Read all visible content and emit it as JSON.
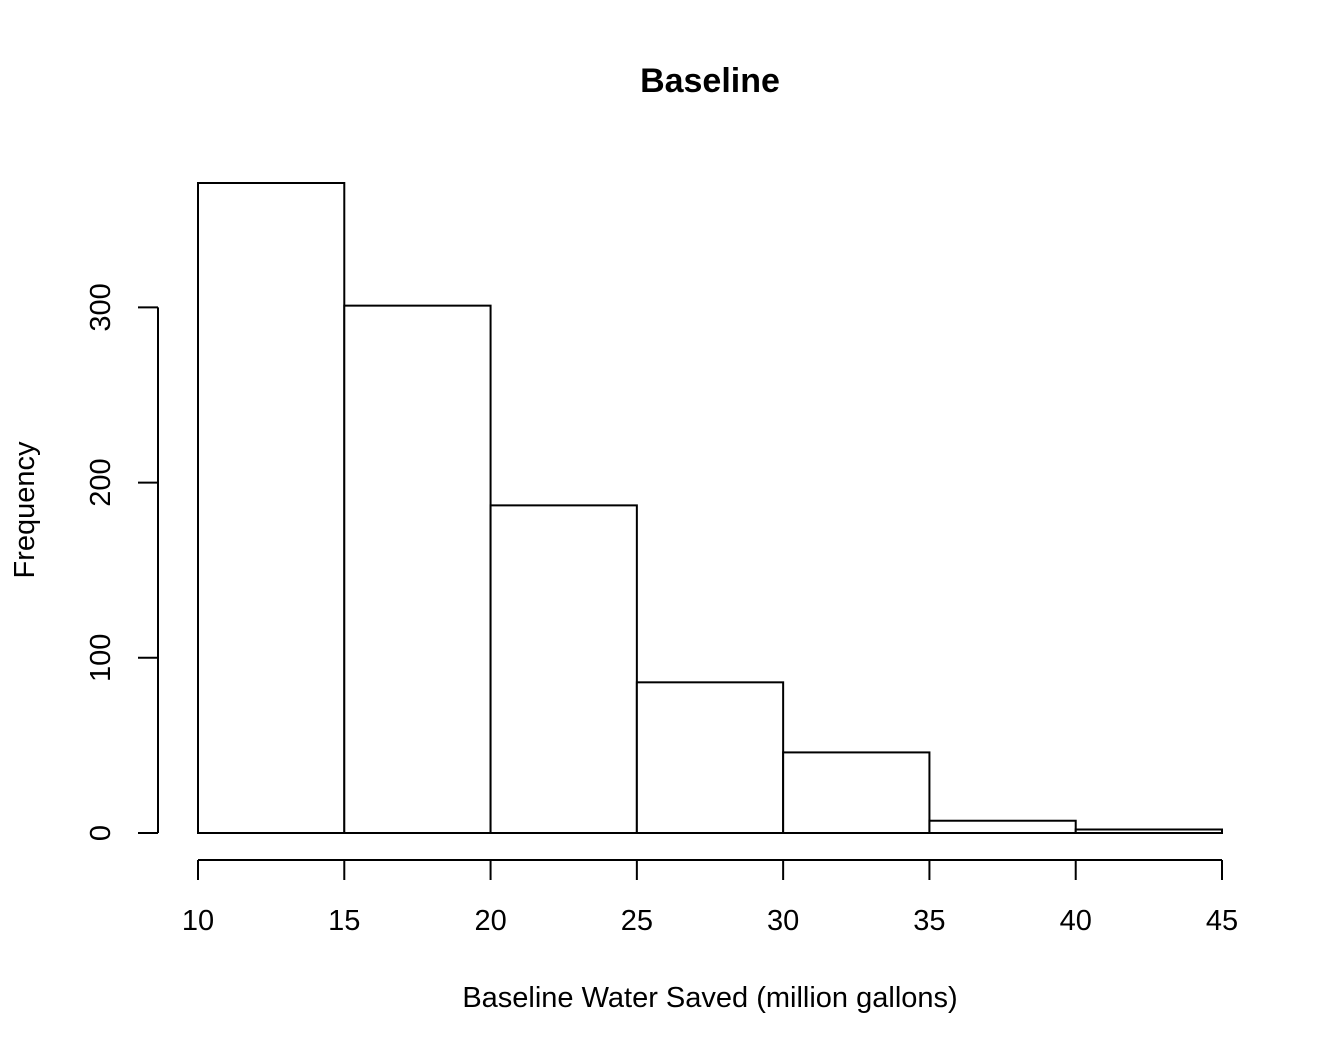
{
  "chart_data": {
    "type": "bar",
    "title": "Baseline",
    "xlabel": "Baseline Water Saved (million gallons)",
    "ylabel": "Frequency",
    "bins": [
      {
        "from": 10,
        "to": 15,
        "count": 371
      },
      {
        "from": 15,
        "to": 20,
        "count": 301
      },
      {
        "from": 20,
        "to": 25,
        "count": 187
      },
      {
        "from": 25,
        "to": 30,
        "count": 86
      },
      {
        "from": 30,
        "to": 35,
        "count": 46
      },
      {
        "from": 35,
        "to": 40,
        "count": 7
      },
      {
        "from": 40,
        "to": 45,
        "count": 2
      }
    ],
    "xticks": [
      10,
      15,
      20,
      25,
      30,
      35,
      40,
      45
    ],
    "yticks": [
      0,
      100,
      200,
      300
    ],
    "xlim": [
      10,
      45
    ],
    "ylim": [
      0,
      371
    ],
    "grid": false,
    "bar_fill": "#ffffff",
    "bar_stroke": "#000000"
  }
}
